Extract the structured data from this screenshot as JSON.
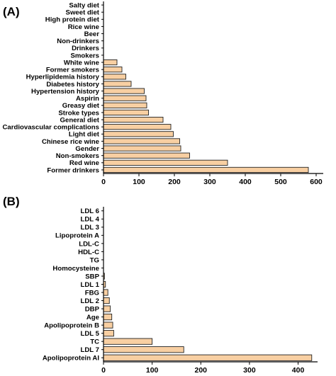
{
  "chart_data": [
    {
      "type": "bar",
      "orientation": "horizontal",
      "panel_label": "(A)",
      "categories": [
        "Former drinkers",
        "Red wine",
        "Non-smokers",
        "Gender",
        "Chinese rice wine",
        "Light diet",
        "Cardiovascular complications",
        "General diet",
        "Stroke types",
        "Greasy diet",
        "Aspirin",
        "Hypertension history",
        "Diabetes history",
        "Hyperlipidemia history",
        "Former smokers",
        "White wine",
        "Smokers",
        "Drinkers",
        "Non-drinkers",
        "Beer",
        "Rice wine",
        "High protein diet",
        "Sweet diet",
        "Salty diet"
      ],
      "values": [
        578,
        350,
        243,
        218,
        215,
        197,
        190,
        168,
        127,
        122,
        120,
        115,
        78,
        63,
        52,
        38,
        0,
        0,
        0,
        0,
        0,
        0,
        0,
        0
      ],
      "xlim": [
        0,
        620
      ],
      "xticks": [
        0,
        100,
        200,
        300,
        400,
        500,
        600
      ],
      "xlabel": "",
      "ylabel": "",
      "grid": false,
      "bar_color": "#f8cfa2"
    },
    {
      "type": "bar",
      "orientation": "horizontal",
      "panel_label": "(B)",
      "categories": [
        "Apolipoprotein AI",
        "LDL 7",
        "TC",
        "LDL 5",
        "Apolipoprotein B",
        "Age",
        "DBP",
        "LDL 2",
        "FBG",
        "LDL 1",
        "SBP",
        "Homocysteine",
        "TG",
        "HDL-C",
        "LDL-C",
        "Lipoprotein A",
        "LDL 3",
        "LDL 4",
        "LDL 6"
      ],
      "values": [
        428,
        165,
        100,
        21,
        19,
        17,
        14,
        12,
        9,
        4,
        2,
        0,
        0,
        0,
        0,
        0,
        0,
        0,
        0
      ],
      "xlim": [
        0,
        440
      ],
      "xticks": [
        0,
        100,
        200,
        300,
        400
      ],
      "xlabel": "",
      "ylabel": "",
      "grid": false,
      "bar_color": "#f8cfa2"
    }
  ]
}
